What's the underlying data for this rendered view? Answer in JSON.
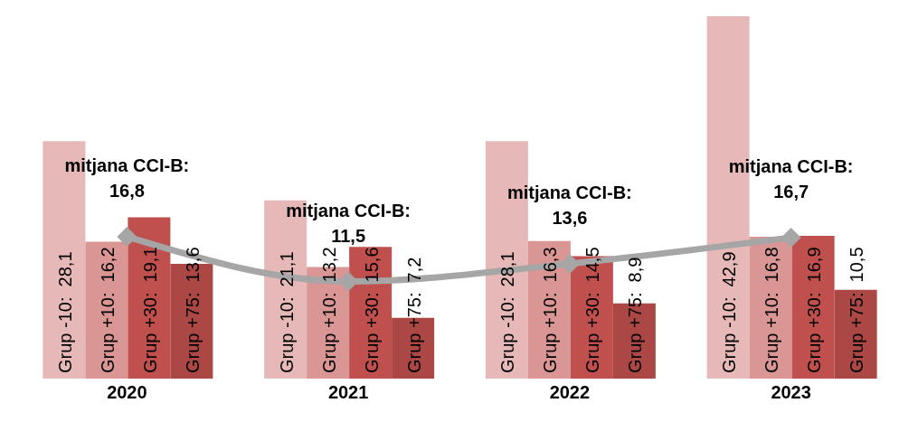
{
  "chart_data": {
    "type": "bar",
    "categories": [
      "2020",
      "2021",
      "2022",
      "2023"
    ],
    "series": [
      {
        "name": "Grup -10:",
        "color": "#e6b9b8",
        "values": [
          28.1,
          21.1,
          28.1,
          42.9
        ],
        "value_labels": [
          "28,1",
          "21,1",
          "28,1",
          "42,9"
        ]
      },
      {
        "name": "Grup +10:",
        "color": "#d99694",
        "values": [
          16.2,
          13.2,
          16.3,
          16.8
        ],
        "value_labels": [
          "16,2",
          "13,2",
          "16,3",
          "16,8"
        ]
      },
      {
        "name": "Grup +30:",
        "color": "#c0504d",
        "values": [
          19.1,
          15.6,
          14.5,
          16.9
        ],
        "value_labels": [
          "19,1",
          "15,6",
          "14,5",
          "16,9"
        ]
      },
      {
        "name": "Grup +75:",
        "color": "#ab4744",
        "values": [
          13.6,
          7.2,
          8.9,
          10.5
        ],
        "value_labels": [
          "13,6",
          "7,2",
          "8,9",
          "10,5"
        ]
      },
      {
        "type": "line",
        "color": "#a6a6a6",
        "marker": "diamond",
        "values": [
          16.8,
          11.5,
          13.6,
          16.7
        ],
        "value_labels": [
          "mitjana CCI-B: 16,8",
          "mitjana CCI-B: 11,5",
          "mitjana CCI-B: 13,6",
          "mitjana CCI-B: 16,7"
        ]
      }
    ]
  }
}
